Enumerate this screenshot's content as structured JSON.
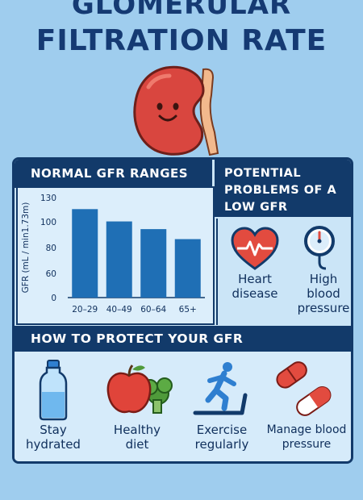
{
  "title": {
    "line1": "GLOMERULAR",
    "line2": "FILTRATION RATE"
  },
  "sections": {
    "normal_ranges": "NORMAL GFR RANGES",
    "problems": "POTENTIAL PROBLEMS OF A LOW GFR",
    "protect": "HOW TO PROTECT YOUR GFR"
  },
  "chart_data": {
    "type": "bar",
    "categories": [
      "20–29",
      "40–49",
      "60–64",
      "65+"
    ],
    "values": [
      115,
      99,
      89,
      76
    ],
    "ylabel": "GFR (mL / min1.73m)",
    "yticks": [
      0,
      60,
      80,
      100,
      130
    ],
    "ylim": [
      0,
      130
    ],
    "bar_color": "#1f6fb5"
  },
  "problems": [
    {
      "label": "Heart disease",
      "icon": "heart-pulse-icon"
    },
    {
      "label": "High blood pressure",
      "icon": "pressure-gauge-icon"
    }
  ],
  "tips": [
    {
      "label": "Stay hydrated",
      "icon": "water-bottle-icon"
    },
    {
      "label": "Healthy diet",
      "icon": "apple-broccoli-icon"
    },
    {
      "label": "Exercise regularly",
      "icon": "treadmill-runner-icon"
    },
    {
      "label": "Manage blood pressure",
      "icon": "pills-icon"
    }
  ],
  "colors": {
    "background": "#9fcdee",
    "navy": "#123a6a",
    "kidney": "#d9463f"
  }
}
